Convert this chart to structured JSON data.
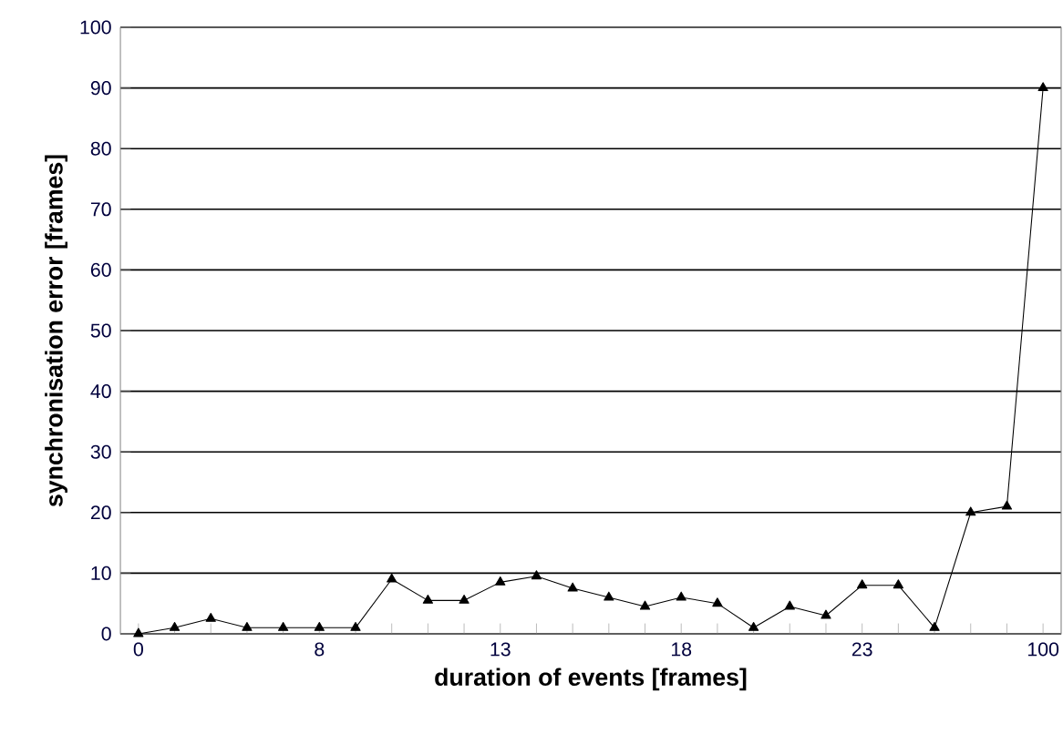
{
  "chart_data": {
    "type": "line",
    "xlabel": "duration of events [frames]",
    "ylabel": "synchronisation error [frames]",
    "categories": [
      "0",
      null,
      null,
      null,
      null,
      "8",
      null,
      null,
      null,
      null,
      "13",
      null,
      null,
      null,
      null,
      "18",
      null,
      null,
      null,
      null,
      "23",
      null,
      null,
      null,
      null,
      "100"
    ],
    "series": [
      {
        "color": "#000000",
        "values": [
          0,
          1,
          2.5,
          1,
          1,
          1,
          1,
          9,
          5.5,
          5.5,
          8.5,
          9.5,
          7.5,
          6,
          4.5,
          6,
          5,
          1,
          4.5,
          3,
          8,
          8,
          1,
          20,
          21,
          90
        ]
      }
    ],
    "ylim": [
      0,
      100
    ],
    "yticks": [
      0,
      10,
      20,
      30,
      40,
      50,
      60,
      70,
      80,
      90,
      100
    ],
    "grid": "y",
    "marker": "triangle",
    "line_style": "solid"
  }
}
